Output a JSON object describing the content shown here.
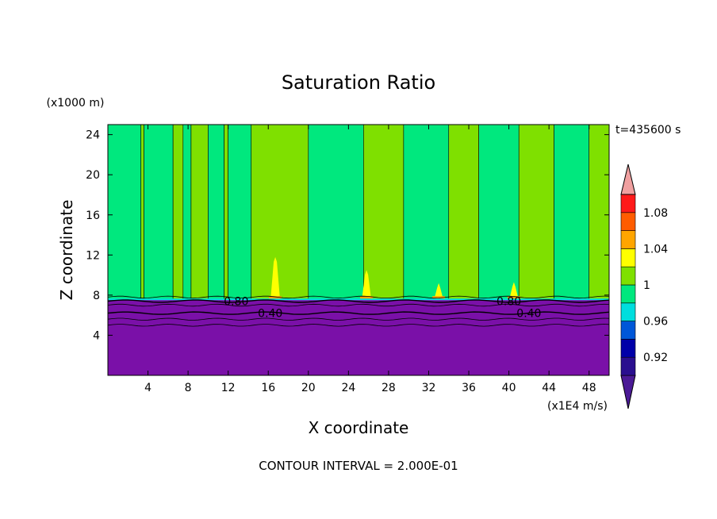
{
  "chart_data": {
    "type": "contour",
    "title": "Saturation Ratio",
    "xlabel": "X coordinate",
    "ylabel": "Z coordinate",
    "x_unit": "(x1E4 m/s)",
    "y_unit": "(x1000 m)",
    "time_label": "t=435600 s",
    "footer": "CONTOUR INTERVAL = 2.000E-01",
    "xlim": [
      0,
      50
    ],
    "ylim": [
      0,
      25
    ],
    "x_ticks": [
      4,
      8,
      12,
      16,
      20,
      24,
      28,
      32,
      36,
      40,
      44,
      48
    ],
    "x_tick_labels": [
      "4",
      "8",
      "12",
      "16",
      "20",
      "24",
      "28",
      "32",
      "36",
      "40",
      "44",
      "48"
    ],
    "y_ticks": [
      4,
      8,
      12,
      16,
      20,
      24
    ],
    "y_tick_labels": [
      "4",
      "8",
      "12",
      "16",
      "20",
      "24"
    ],
    "colorbar": {
      "levels": [
        0.9,
        0.92,
        0.94,
        0.96,
        0.98,
        1.0,
        1.02,
        1.04,
        1.06,
        1.08,
        1.1
      ],
      "colors": [
        "#4b1a96",
        "#2a0f8f",
        "#0000a8",
        "#0057d8",
        "#00dede",
        "#00e87e",
        "#7fe000",
        "#ffff00",
        "#ffa500",
        "#ff5c00",
        "#ff1a1a",
        "#f0a0a0"
      ],
      "labels": [
        "0.92",
        "0.96",
        "1",
        "1.04",
        "1.08"
      ],
      "label_values": [
        0.92,
        0.96,
        1.0,
        1.04,
        1.08
      ]
    },
    "lower_region": {
      "z_top": 7.5,
      "value": "below 0.90",
      "color": "#7a10a8"
    },
    "line_contours": [
      {
        "label": "0.80",
        "z": 7.4,
        "label_x": [
          12.8,
          40.0
        ]
      },
      {
        "label": "0.40",
        "z": 6.2,
        "label_x": [
          16.2,
          42.0
        ]
      }
    ],
    "vertical_bands": [
      {
        "x0": 0,
        "x1": 3.3,
        "value": 1.0,
        "color": "#00e87e"
      },
      {
        "x0": 3.3,
        "x1": 3.6,
        "value": 1.02,
        "color": "#7fe000"
      },
      {
        "x0": 3.6,
        "x1": 6.5,
        "value": 1.0,
        "color": "#00e87e"
      },
      {
        "x0": 6.5,
        "x1": 7.5,
        "value": 1.02,
        "color": "#7fe000"
      },
      {
        "x0": 7.5,
        "x1": 8.3,
        "value": 1.0,
        "color": "#00e87e"
      },
      {
        "x0": 8.3,
        "x1": 10.0,
        "value": 1.02,
        "color": "#7fe000"
      },
      {
        "x0": 10.0,
        "x1": 11.6,
        "value": 1.0,
        "color": "#00e87e"
      },
      {
        "x0": 11.6,
        "x1": 12.0,
        "value": 1.02,
        "color": "#7fe000"
      },
      {
        "x0": 12.0,
        "x1": 14.3,
        "value": 1.0,
        "color": "#00e87e"
      },
      {
        "x0": 14.3,
        "x1": 20.0,
        "value": 1.02,
        "color": "#7fe000"
      },
      {
        "x0": 20.0,
        "x1": 25.5,
        "value": 1.0,
        "color": "#00e87e"
      },
      {
        "x0": 25.5,
        "x1": 29.5,
        "value": 1.02,
        "color": "#7fe000"
      },
      {
        "x0": 29.5,
        "x1": 34.0,
        "value": 1.0,
        "color": "#00e87e"
      },
      {
        "x0": 34.0,
        "x1": 37.0,
        "value": 1.02,
        "color": "#7fe000"
      },
      {
        "x0": 37.0,
        "x1": 41.0,
        "value": 1.0,
        "color": "#00e87e"
      },
      {
        "x0": 41.0,
        "x1": 44.5,
        "value": 1.02,
        "color": "#7fe000"
      },
      {
        "x0": 44.5,
        "x1": 48.0,
        "value": 1.0,
        "color": "#00e87e"
      },
      {
        "x0": 48.0,
        "x1": 50.0,
        "value": 1.02,
        "color": "#7fe000"
      }
    ],
    "peaks": [
      {
        "x": 16.7,
        "z_top": 11.8,
        "value": 1.04,
        "color": "#ffff00"
      },
      {
        "x": 25.8,
        "z_top": 10.5,
        "value": 1.04,
        "color": "#ffff00"
      },
      {
        "x": 33.0,
        "z_top": 9.2,
        "value": 1.04,
        "color": "#ffff00"
      },
      {
        "x": 40.5,
        "z_top": 9.3,
        "value": 1.04,
        "color": "#ffff00"
      }
    ]
  }
}
